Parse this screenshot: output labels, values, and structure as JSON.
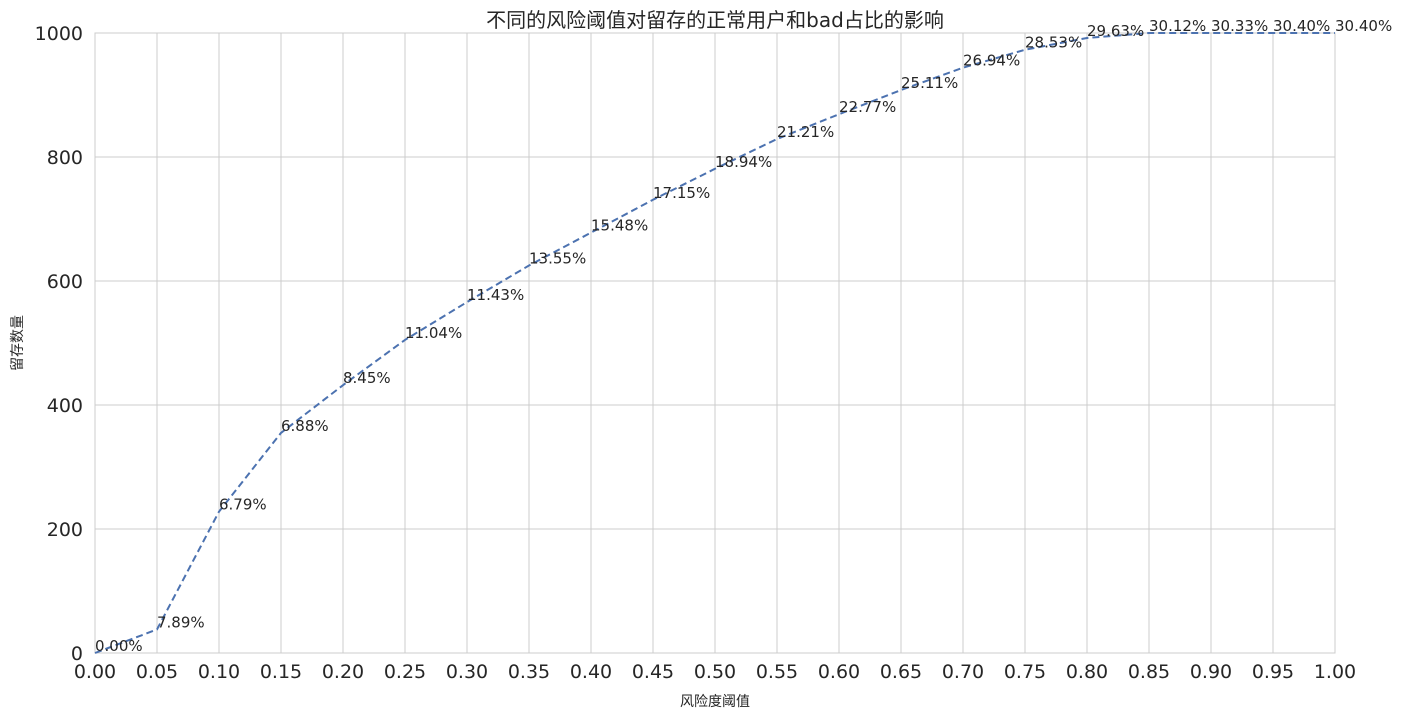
{
  "chart_data": {
    "type": "line",
    "title": "不同的风险阈值对留存的正常用户和bad占比的影响",
    "xlabel": "风险度阈值",
    "ylabel": "留存数量",
    "xlim": [
      0,
      1
    ],
    "ylim": [
      0,
      1000
    ],
    "x_ticks": [
      "0.00",
      "0.05",
      "0.10",
      "0.15",
      "0.20",
      "0.25",
      "0.30",
      "0.35",
      "0.40",
      "0.45",
      "0.50",
      "0.55",
      "0.60",
      "0.65",
      "0.70",
      "0.75",
      "0.80",
      "0.85",
      "0.90",
      "0.95",
      "1.00"
    ],
    "y_ticks": [
      "0",
      "200",
      "400",
      "600",
      "800",
      "1000"
    ],
    "grid": true,
    "line_style": "dashed",
    "colors": {
      "line": "#4c72b0",
      "grid": "#cccccc",
      "text": "#262626"
    },
    "series": [
      {
        "x": [
          0.0,
          0.05,
          0.1,
          0.15,
          0.2,
          0.25,
          0.3,
          0.35,
          0.4,
          0.45,
          0.5,
          0.55,
          0.6,
          0.65,
          0.7,
          0.75,
          0.8,
          0.85,
          0.9,
          0.95,
          1.0
        ],
        "y": [
          0,
          38,
          228,
          355,
          432,
          505,
          566,
          625,
          678,
          731,
          781,
          829,
          869,
          908,
          944,
          973,
          992,
          1000,
          1000,
          1000,
          1000
        ],
        "labels": [
          "0.00%",
          "7.89%",
          "6.79%",
          "6.88%",
          "8.45%",
          "11.04%",
          "11.43%",
          "13.55%",
          "15.48%",
          "17.15%",
          "18.94%",
          "21.21%",
          "22.77%",
          "25.11%",
          "26.94%",
          "28.53%",
          "29.63%",
          "30.12%",
          "30.33%",
          "30.40%",
          "30.40%"
        ]
      }
    ]
  }
}
